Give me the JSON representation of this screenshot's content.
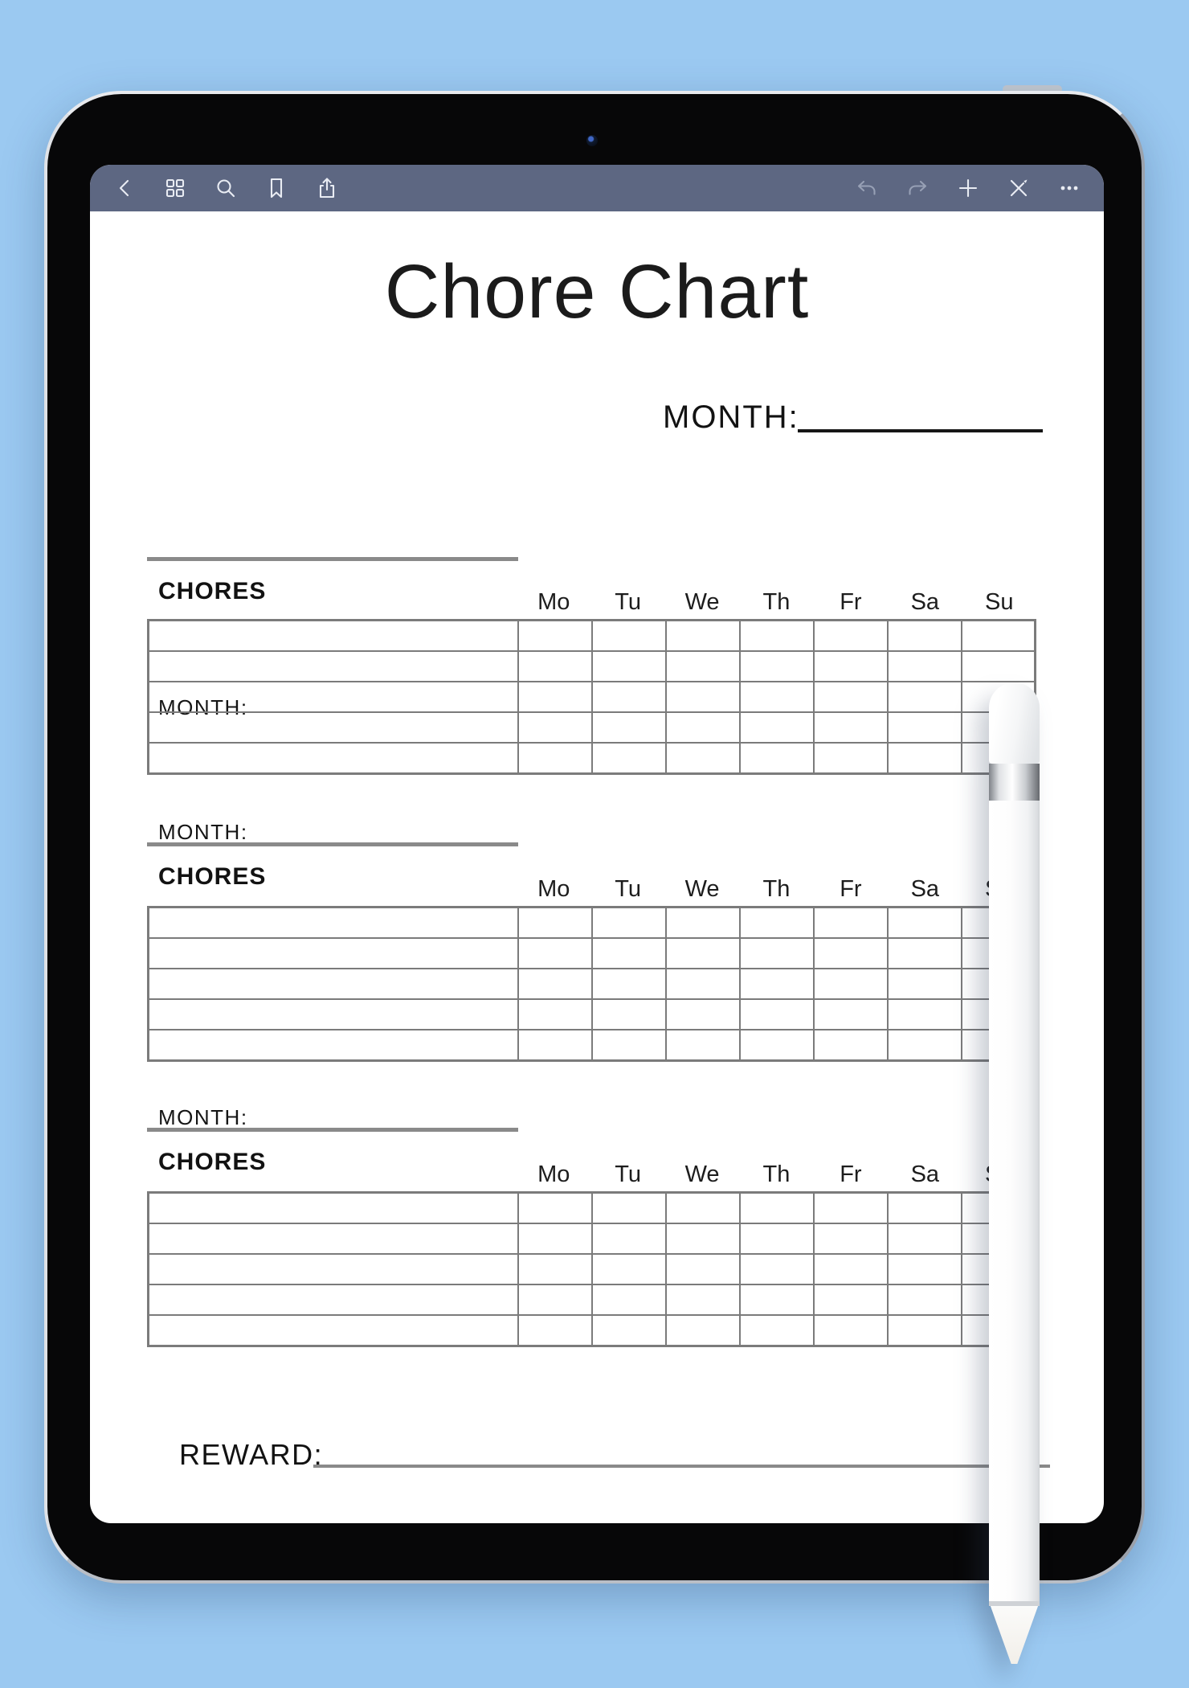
{
  "toolbar": {
    "left_icons": [
      "back",
      "apps-grid",
      "search",
      "bookmark",
      "share"
    ],
    "right_icons": [
      "undo",
      "redo",
      "add",
      "cut-pen",
      "more"
    ]
  },
  "page": {
    "title": "Chore Chart",
    "top_month": {
      "label": "MONTH:"
    },
    "sections": [
      {
        "month_label": "MONTH:",
        "chores_label": "CHORES",
        "days": [
          "Mo",
          "Tu",
          "We",
          "Th",
          "Fr",
          "Sa",
          "Su"
        ],
        "rows": 5
      },
      {
        "month_label": "MONTH:",
        "chores_label": "CHORES",
        "days": [
          "Mo",
          "Tu",
          "We",
          "Th",
          "Fr",
          "Sa",
          "Su"
        ],
        "rows": 5
      },
      {
        "month_label": "MONTH:",
        "chores_label": "CHORES",
        "days": [
          "Mo",
          "Tu",
          "We",
          "Th",
          "Fr",
          "Sa",
          "Su"
        ],
        "rows": 5
      }
    ],
    "reward": {
      "label": "REWARD:"
    }
  },
  "colors": {
    "background": "#9bc9f1",
    "toolbar": "#5d6782",
    "toolbar_icon": "#e9ecf3",
    "toolbar_icon_dimmed": "#97a0b5",
    "table_border": "#7b7b7b",
    "underline_gray": "#8a8a8a",
    "underline_black": "#161616",
    "text": "#121212",
    "paper": "#ffffff"
  }
}
